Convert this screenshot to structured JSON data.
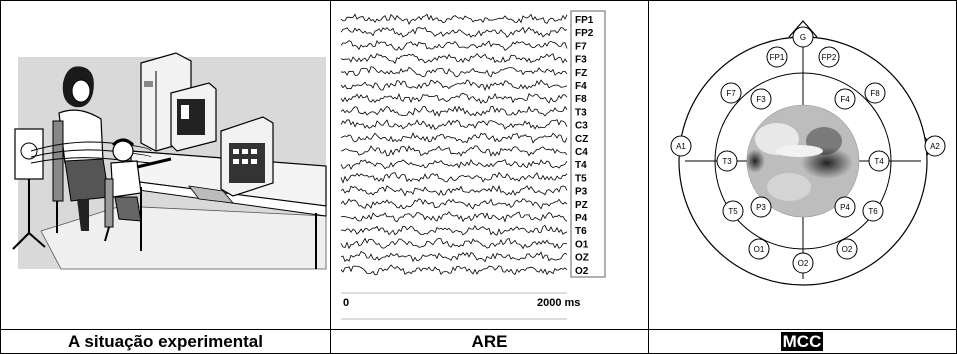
{
  "captions": {
    "left": "A situação experimental",
    "middle": "ARE",
    "right": "MCC"
  },
  "eeg": {
    "channels": [
      "FP1",
      "FP2",
      "F7",
      "F3",
      "FZ",
      "F4",
      "F8",
      "T3",
      "C3",
      "CZ",
      "C4",
      "T4",
      "T5",
      "P3",
      "PZ",
      "P4",
      "T6",
      "O1",
      "OZ",
      "O2"
    ],
    "axis_start": "0",
    "axis_end": "2000 ms"
  },
  "head_map": {
    "electrodes": [
      {
        "label": "G"
      },
      {
        "label": "FP1"
      },
      {
        "label": "FP2"
      },
      {
        "label": "F7"
      },
      {
        "label": "F3"
      },
      {
        "label": "F4"
      },
      {
        "label": "F8"
      },
      {
        "label": "A1"
      },
      {
        "label": "T3"
      },
      {
        "label": "T4"
      },
      {
        "label": "A2"
      },
      {
        "label": "T5"
      },
      {
        "label": "P3"
      },
      {
        "label": "P4"
      },
      {
        "label": "T6"
      },
      {
        "label": "O1"
      },
      {
        "label": "O2"
      },
      {
        "label": "O2"
      }
    ]
  },
  "colors": {
    "line": "#000000",
    "gray_bg": "#d9d9d9",
    "highlight_bg": "#000000",
    "highlight_text": "#ffffff"
  }
}
